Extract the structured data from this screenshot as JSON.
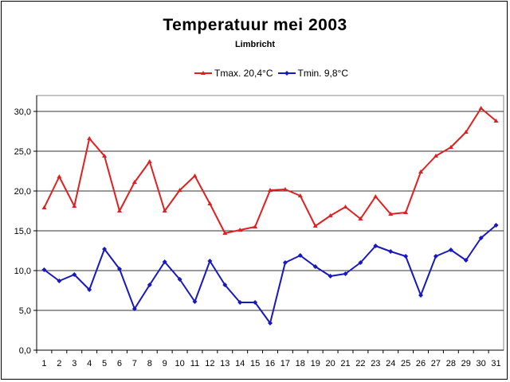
{
  "chart_data": {
    "type": "line",
    "title": "Temperatuur mei 2003",
    "subtitle": "Limbricht",
    "xlabel": "",
    "ylabel": "",
    "x": [
      1,
      2,
      3,
      4,
      5,
      6,
      7,
      8,
      9,
      10,
      11,
      12,
      13,
      14,
      15,
      16,
      17,
      18,
      19,
      20,
      21,
      22,
      23,
      24,
      25,
      26,
      27,
      28,
      29,
      30,
      31
    ],
    "ylim": [
      0,
      30
    ],
    "yticks": [
      "0,0",
      "5,0",
      "10,0",
      "15,0",
      "20,0",
      "25,0",
      "30,0"
    ],
    "grid": true,
    "legend_position": "top-center",
    "series": [
      {
        "name": "Tmax. 20,4°C",
        "color": "#e02020",
        "marker": "triangle",
        "values": [
          17.9,
          21.8,
          18.1,
          26.6,
          24.4,
          17.5,
          21.1,
          23.7,
          17.5,
          20.1,
          21.9,
          18.4,
          14.7,
          15.1,
          15.5,
          20.1,
          20.2,
          19.4,
          15.6,
          16.9,
          18.0,
          16.5,
          19.3,
          17.1,
          17.3,
          22.4,
          24.4,
          25.5,
          27.4,
          30.4,
          28.8
        ]
      },
      {
        "name": "Tmin. 9,8°C",
        "color": "#1818c0",
        "marker": "diamond",
        "values": [
          10.1,
          8.7,
          9.5,
          7.6,
          12.7,
          10.2,
          5.2,
          8.2,
          11.1,
          8.9,
          6.1,
          11.2,
          8.2,
          6.0,
          6.0,
          3.4,
          11.0,
          11.9,
          10.5,
          9.3,
          9.6,
          11.0,
          13.1,
          12.4,
          11.8,
          6.9,
          11.8,
          12.6,
          11.3,
          14.1,
          15.7
        ]
      }
    ]
  }
}
